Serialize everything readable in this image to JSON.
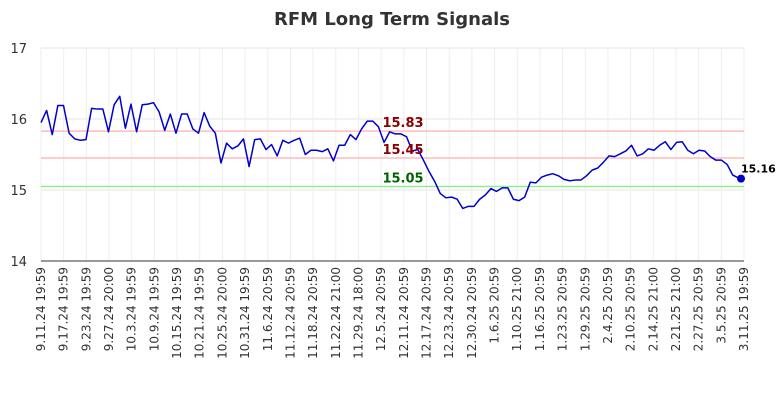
{
  "chart_data": {
    "type": "line",
    "title": "RFM Long Term Signals",
    "ylim": [
      14,
      17
    ],
    "yticks": [
      "14",
      "15",
      "16",
      "17"
    ],
    "x_tick_labels": [
      "9.11.24 19:59",
      "9.17.24 19:59",
      "9.23.24 19:59",
      "9.27.24 20:00",
      "10.3.24 19:59",
      "10.9.24 19:59",
      "10.15.24 19:59",
      "10.21.24 19:59",
      "10.25.24 20:00",
      "10.31.24 19:59",
      "11.6.24 20:59",
      "11.12.24 20:59",
      "11.18.24 20:59",
      "11.22.24 21:00",
      "11.29.24 18:00",
      "12.5.24 20:59",
      "12.11.24 20:59",
      "12.17.24 20:59",
      "12.23.24 20:59",
      "12.30.24 20:59",
      "1.6.25 20:59",
      "1.10.25 21:00",
      "1.16.25 20:59",
      "1.23.25 20:59",
      "1.29.25 20:59",
      "2.4.25 20:59",
      "2.10.25 20:59",
      "2.14.25 21:00",
      "2.21.25 21:00",
      "2.27.25 20:59",
      "3.5.25 20:59",
      "3.11.25 19:59"
    ],
    "grid": true,
    "series": [
      {
        "color": "#0000cc",
        "values": [
          15.95,
          16.12,
          15.78,
          16.19,
          16.19,
          15.8,
          15.72,
          15.7,
          15.71,
          16.15,
          16.14,
          16.14,
          15.82,
          16.2,
          16.32,
          15.87,
          16.21,
          15.82,
          16.2,
          16.21,
          16.23,
          16.1,
          15.84,
          16.07,
          15.8,
          16.07,
          16.07,
          15.86,
          15.8,
          16.09,
          15.9,
          15.8,
          15.38,
          15.66,
          15.58,
          15.62,
          15.72,
          15.33,
          15.71,
          15.72,
          15.57,
          15.64,
          15.48,
          15.7,
          15.66,
          15.7,
          15.73,
          15.5,
          15.56,
          15.56,
          15.54,
          15.58,
          15.41,
          15.63,
          15.63,
          15.78,
          15.71,
          15.86,
          15.97,
          15.97,
          15.89,
          15.67,
          15.82,
          15.79,
          15.79,
          15.75,
          15.55,
          15.57,
          15.42,
          15.26,
          15.12,
          14.95,
          14.89,
          14.9,
          14.87,
          14.74,
          14.77,
          14.77,
          14.87,
          14.93,
          15.02,
          14.98,
          15.03,
          15.03,
          14.87,
          14.85,
          14.9,
          15.11,
          15.1,
          15.18,
          15.21,
          15.23,
          15.2,
          15.15,
          15.13,
          15.14,
          15.14,
          15.2,
          15.28,
          15.31,
          15.39,
          15.48,
          15.47,
          15.51,
          15.55,
          15.63,
          15.48,
          15.51,
          15.58,
          15.56,
          15.63,
          15.68,
          15.57,
          15.67,
          15.68,
          15.56,
          15.51,
          15.56,
          15.55,
          15.47,
          15.42,
          15.42,
          15.36,
          15.21,
          15.17,
          15.16
        ]
      }
    ],
    "reference_lines": [
      {
        "value": 15.83,
        "label": "15.83",
        "line_color": "#ffbbbb",
        "label_color": "#8b0000"
      },
      {
        "value": 15.45,
        "label": "15.45",
        "line_color": "#ffbbbb",
        "label_color": "#8b0000"
      },
      {
        "value": 15.05,
        "label": "15.05",
        "line_color": "#90ee90",
        "label_color": "#006400"
      }
    ],
    "last_point_label": "15.16"
  }
}
